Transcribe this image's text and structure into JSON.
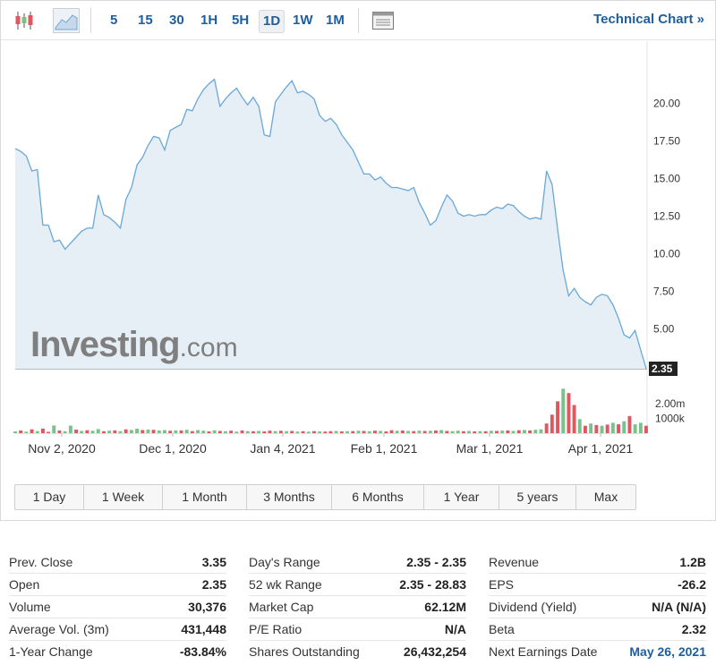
{
  "toolbar": {
    "timeframes": [
      "5",
      "15",
      "30",
      "1H",
      "5H",
      "1D",
      "1W",
      "1M"
    ],
    "active_timeframe": "1D",
    "technical_chart_label": "Technical Chart »"
  },
  "logo": {
    "main": "Investing",
    "suffix": ".com"
  },
  "range_buttons": [
    "1 Day",
    "1 Week",
    "1 Month",
    "3 Months",
    "6 Months",
    "1 Year",
    "5 years",
    "Max"
  ],
  "colors": {
    "line": "#6aa8d8",
    "area": "#e6eef6",
    "vol_up": "#7cc08a",
    "vol_down": "#e0575f",
    "link": "#1f5e9c"
  },
  "chart_data": {
    "type": "area",
    "x_tick_labels": [
      "Nov 2, 2020",
      "Dec 1, 2020",
      "Jan 4, 2021",
      "Feb 1, 2021",
      "Mar 1, 2021",
      "Apr 1, 2021"
    ],
    "y_tick_labels": [
      "20.00",
      "17.50",
      "15.00",
      "12.50",
      "10.00",
      "7.50",
      "5.00"
    ],
    "y_ticks": [
      20,
      17.5,
      15,
      12.5,
      10,
      7.5,
      5
    ],
    "ylim": [
      2.35,
      22.05
    ],
    "last_price_label": "2.35",
    "volume_tick_labels": [
      "2.00m",
      "1000k"
    ],
    "volume_ticks": [
      2000000,
      1000000
    ],
    "volume_max": 3800000,
    "price": [
      17.0,
      16.8,
      16.5,
      15.5,
      15.6,
      11.9,
      11.9,
      10.8,
      10.9,
      10.3,
      10.7,
      11.1,
      11.5,
      11.7,
      11.7,
      13.9,
      12.6,
      12.4,
      12.1,
      11.7,
      13.6,
      14.4,
      15.9,
      16.4,
      17.2,
      17.8,
      17.7,
      16.9,
      18.2,
      18.4,
      18.6,
      19.6,
      19.5,
      20.3,
      20.9,
      21.3,
      21.6,
      19.8,
      20.3,
      20.7,
      21.0,
      20.4,
      19.9,
      20.4,
      19.8,
      17.9,
      17.8,
      20.1,
      20.6,
      21.1,
      21.5,
      20.7,
      20.8,
      20.6,
      20.3,
      19.2,
      18.8,
      19.0,
      18.6,
      17.9,
      17.4,
      16.9,
      16.1,
      15.3,
      15.3,
      14.9,
      15.1,
      14.7,
      14.4,
      14.4,
      14.3,
      14.2,
      14.4,
      13.4,
      12.7,
      11.9,
      12.2,
      13.1,
      13.9,
      13.5,
      12.7,
      12.5,
      12.6,
      12.5,
      12.6,
      12.6,
      12.9,
      13.1,
      13.0,
      13.3,
      13.2,
      12.8,
      12.5,
      12.3,
      12.4,
      12.3,
      15.5,
      14.6,
      11.6,
      8.9,
      7.2,
      7.7,
      7.1,
      6.8,
      6.6,
      7.1,
      7.3,
      7.2,
      6.6,
      5.7,
      4.6,
      4.4,
      4.9,
      3.6,
      2.35
    ],
    "volume_direction": [
      "u",
      "d",
      "u",
      "d",
      "u",
      "d",
      "d",
      "u",
      "d",
      "u",
      "u",
      "d",
      "u",
      "d",
      "u",
      "u",
      "d",
      "u",
      "d",
      "u",
      "d",
      "u",
      "u",
      "d",
      "u",
      "d",
      "u",
      "u",
      "d",
      "u",
      "d",
      "u",
      "d",
      "u",
      "u",
      "d",
      "u",
      "d",
      "u",
      "d",
      "u",
      "d",
      "u",
      "d",
      "u",
      "d",
      "d",
      "u",
      "d",
      "u",
      "d",
      "u",
      "d",
      "u",
      "d",
      "u",
      "d",
      "d",
      "u",
      "d",
      "u",
      "d",
      "u",
      "d",
      "u",
      "d",
      "u",
      "d",
      "d",
      "u",
      "d",
      "u",
      "d",
      "u",
      "d",
      "u",
      "d",
      "u",
      "d",
      "u",
      "u",
      "d",
      "u",
      "d",
      "u",
      "d",
      "u",
      "d",
      "u",
      "d",
      "u",
      "d",
      "u",
      "d",
      "u",
      "u",
      "d",
      "d",
      "d",
      "u",
      "d",
      "d",
      "u",
      "d",
      "u",
      "d",
      "u",
      "d",
      "u",
      "d",
      "u",
      "d",
      "u",
      "u",
      "d"
    ],
    "volume": [
      120000,
      180000,
      100000,
      260000,
      140000,
      310000,
      90000,
      520000,
      180000,
      130000,
      510000,
      240000,
      150000,
      200000,
      160000,
      280000,
      130000,
      170000,
      190000,
      140000,
      260000,
      220000,
      300000,
      210000,
      250000,
      230000,
      180000,
      210000,
      160000,
      190000,
      180000,
      230000,
      140000,
      210000,
      170000,
      120000,
      200000,
      150000,
      130000,
      170000,
      110000,
      180000,
      140000,
      130000,
      150000,
      120000,
      170000,
      140000,
      160000,
      130000,
      150000,
      110000,
      130000,
      100000,
      140000,
      120000,
      110000,
      130000,
      150000,
      120000,
      130000,
      140000,
      160000,
      150000,
      130000,
      170000,
      150000,
      120000,
      200000,
      160000,
      180000,
      150000,
      140000,
      170000,
      150000,
      160000,
      180000,
      210000,
      150000,
      140000,
      170000,
      130000,
      150000,
      120000,
      140000,
      130000,
      160000,
      150000,
      170000,
      190000,
      150000,
      200000,
      220000,
      180000,
      230000,
      260000,
      650000,
      1250000,
      2150000,
      3000000,
      2700000,
      1900000,
      950000,
      500000,
      650000,
      550000,
      500000,
      580000,
      700000,
      600000,
      800000,
      1150000,
      600000,
      700000,
      500000
    ]
  },
  "stats": {
    "col1": [
      {
        "label": "Prev. Close",
        "value": "3.35"
      },
      {
        "label": "Open",
        "value": "2.35"
      },
      {
        "label": "Volume",
        "value": "30,376"
      },
      {
        "label": "Average Vol. (3m)",
        "value": "431,448"
      },
      {
        "label": "1-Year Change",
        "value": "-83.84%"
      }
    ],
    "col2": [
      {
        "label": "Day's Range",
        "value": "2.35 - 2.35"
      },
      {
        "label": "52 wk Range",
        "value": "2.35 - 28.83"
      },
      {
        "label": "Market Cap",
        "value": "62.12M"
      },
      {
        "label": "P/E Ratio",
        "value": "N/A"
      },
      {
        "label": "Shares Outstanding",
        "value": "26,432,254"
      }
    ],
    "col3": [
      {
        "label": "Revenue",
        "value": "1.2B"
      },
      {
        "label": "EPS",
        "value": "-26.2"
      },
      {
        "label": "Dividend (Yield)",
        "value": "N/A (N/A)"
      },
      {
        "label": "Beta",
        "value": "2.32"
      },
      {
        "label": "Next Earnings Date",
        "value": "May 26, 2021",
        "link": true
      }
    ]
  }
}
